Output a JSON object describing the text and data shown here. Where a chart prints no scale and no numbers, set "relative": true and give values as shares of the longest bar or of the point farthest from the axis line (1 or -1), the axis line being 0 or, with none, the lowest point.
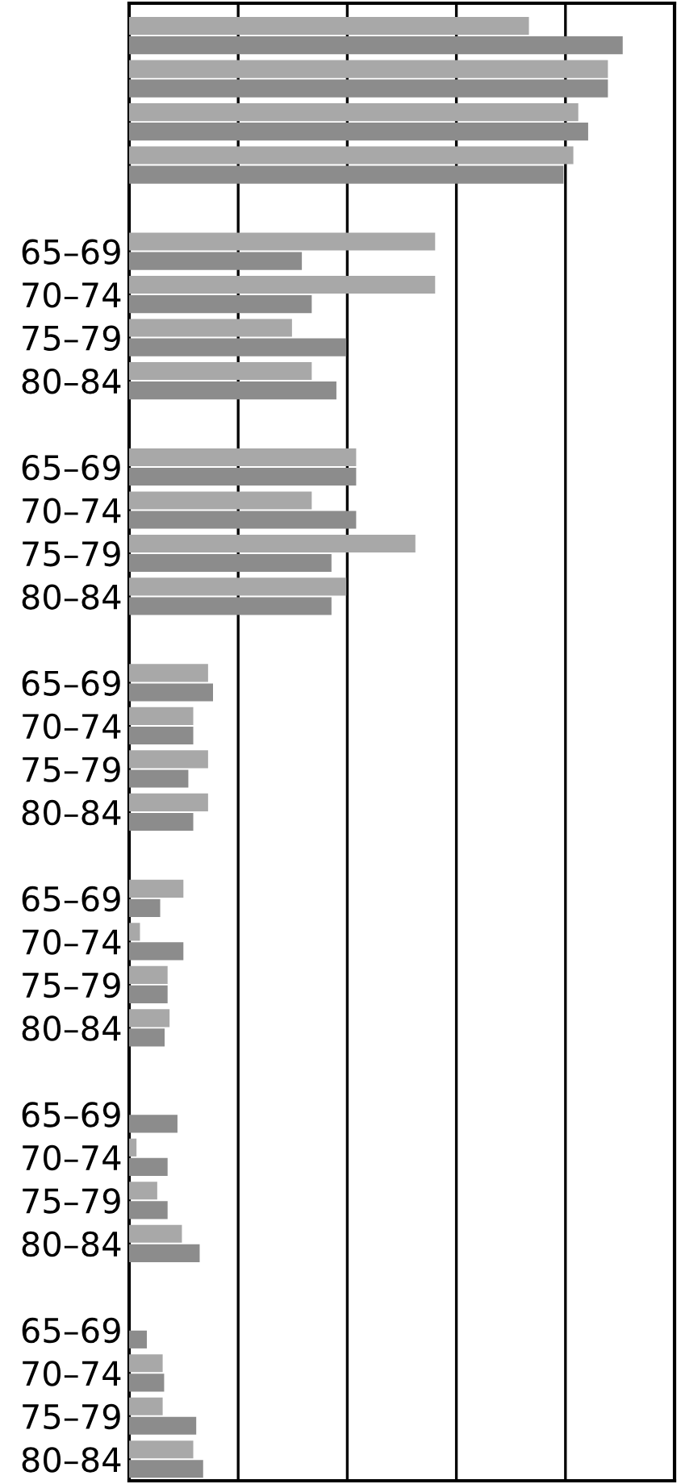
{
  "chart_data": {
    "type": "bar",
    "orientation": "horizontal",
    "relative": true,
    "grid": "x",
    "tick_labels": "y",
    "categories": [
      null,
      null,
      null,
      null,
      null,
      "65–69",
      "70–74",
      "75–79",
      "80–84",
      null,
      "65–69",
      "70–74",
      "75–79",
      "80–84",
      null,
      "65–69",
      "70–74",
      "75–79",
      "80–84",
      null,
      "65–69",
      "70–74",
      "75–79",
      "80–84",
      null,
      "65–69",
      "70–74",
      "75–79",
      "80–84",
      null,
      "65–69",
      "70–74",
      "75–79",
      "80–84"
    ],
    "series": [
      {
        "color": "#a8a8a8",
        "values": [
          0.81,
          0.97,
          0.91,
          0.9,
          null,
          0.62,
          0.62,
          0.33,
          0.37,
          null,
          0.46,
          0.37,
          0.58,
          0.44,
          null,
          0.16,
          0.13,
          0.16,
          0.16,
          null,
          0.11,
          0.022,
          0.078,
          0.082,
          null,
          null,
          0.015,
          0.057,
          0.107,
          null,
          null,
          0.068,
          0.068,
          0.13
        ]
      },
      {
        "color": "#8c8c8c",
        "values": [
          1.0,
          0.97,
          0.93,
          0.88,
          null,
          0.35,
          0.37,
          0.44,
          0.42,
          null,
          0.46,
          0.46,
          0.41,
          0.41,
          null,
          0.17,
          0.13,
          0.12,
          0.13,
          null,
          0.063,
          0.11,
          0.078,
          0.072,
          null,
          0.098,
          0.078,
          0.078,
          0.143,
          null,
          0.036,
          0.071,
          0.136,
          0.15
        ]
      }
    ]
  }
}
